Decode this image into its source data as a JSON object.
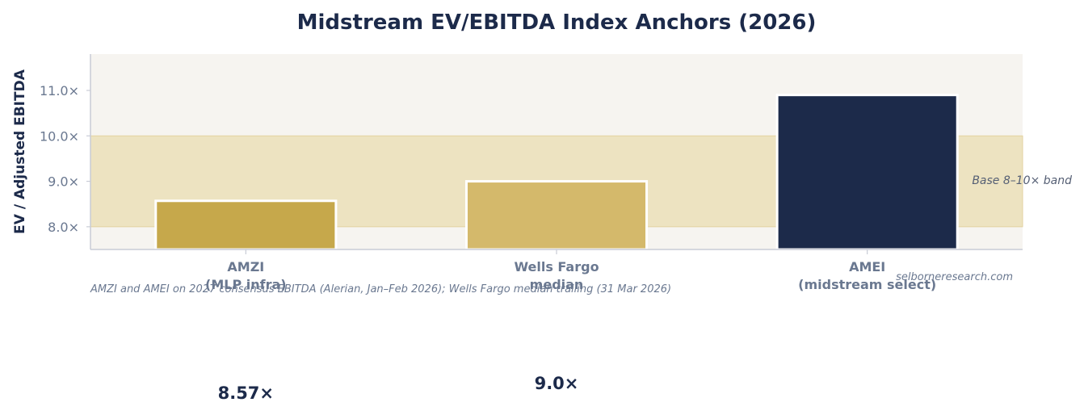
{
  "chart_data": {
    "type": "bar",
    "title": "Midstream EV/EBITDA Index Anchors (2026)",
    "ylabel": "EV / Adjusted EBITDA",
    "xlabel": "",
    "categories": [
      [
        "AMZI",
        "(MLP infra)"
      ],
      [
        "Wells Fargo",
        "median"
      ],
      [
        "AMEI",
        "(midstream select)"
      ]
    ],
    "values": [
      8.57,
      9.0,
      10.9
    ],
    "value_labels": [
      "8.57×",
      "9.0×",
      ""
    ],
    "bar_colors": [
      "#c6a84b",
      "#d4b96b",
      "#1c2a4a"
    ],
    "ylim": [
      7.5,
      11.8
    ],
    "yticks": [
      8.0,
      9.0,
      10.0,
      11.0
    ],
    "ytick_labels": [
      "8.0×",
      "9.0×",
      "10.0×",
      "11.0×"
    ],
    "band": {
      "from": 8.0,
      "to": 10.0,
      "label": "Base 8–10× band"
    },
    "source_note": "AMZI and AMEI on 2027 consensus EBITDA (Alerian, Jan–Feb 2026); Wells Fargo median trailing (31 Mar 2026)",
    "watermark": "selborneresearch.com",
    "grid": false,
    "legend": "none",
    "colors": {
      "plot_bg": "#f6f4f0",
      "band": "#ede3c1",
      "band_edge": "#e3d2a0",
      "axis": "#c9ccd6",
      "title": "#1c2a4a",
      "tick_text": "#6a7890"
    }
  }
}
